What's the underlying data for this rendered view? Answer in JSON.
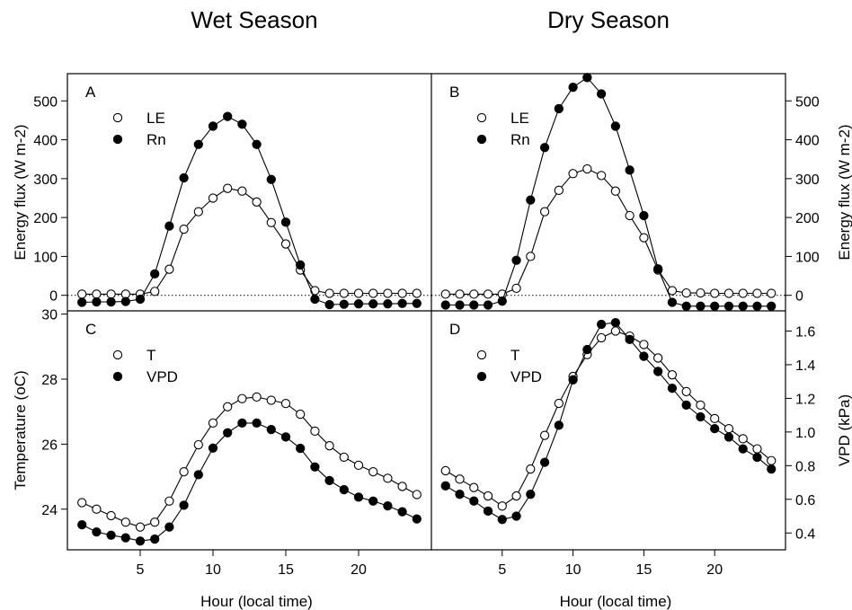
{
  "titles": {
    "wet": "Wet Season",
    "dry": "Dry Season"
  },
  "chart_data": [
    {
      "type": "line",
      "panel": "A",
      "column": "Wet Season",
      "xlabel": "",
      "ylabel": "Energy flux (W m-2)",
      "ylabel_side": "left",
      "xlim": [
        0,
        25
      ],
      "ylim": [
        -40,
        570
      ],
      "yticks": [
        0,
        100,
        200,
        300,
        400,
        500
      ],
      "zero_line": true,
      "legend": "top-left",
      "x": [
        1,
        2,
        3,
        4,
        5,
        6,
        7,
        8,
        9,
        10,
        11,
        12,
        13,
        14,
        15,
        16,
        17,
        18,
        19,
        20,
        21,
        22,
        23,
        24
      ],
      "series": [
        {
          "name": "LE",
          "marker": "open-circle",
          "values": [
            3,
            3,
            3,
            3,
            3,
            10,
            67,
            170,
            215,
            250,
            275,
            268,
            240,
            187,
            132,
            65,
            12,
            5,
            5,
            5,
            5,
            5,
            5,
            5
          ]
        },
        {
          "name": "Rn",
          "marker": "filled-circle",
          "values": [
            -18,
            -17,
            -17,
            -16,
            -10,
            55,
            178,
            302,
            388,
            435,
            460,
            440,
            388,
            298,
            188,
            78,
            -10,
            -24,
            -23,
            -22,
            -22,
            -22,
            -21,
            -21
          ]
        }
      ]
    },
    {
      "type": "line",
      "panel": "B",
      "column": "Dry Season",
      "xlabel": "",
      "ylabel": "Energy flux (W m-2)",
      "ylabel_side": "right",
      "xlim": [
        0,
        25
      ],
      "ylim": [
        -40,
        570
      ],
      "yticks": [
        0,
        100,
        200,
        300,
        400,
        500
      ],
      "zero_line": true,
      "legend": "top-left",
      "x": [
        1,
        2,
        3,
        4,
        5,
        6,
        7,
        8,
        9,
        10,
        11,
        12,
        13,
        14,
        15,
        16,
        17,
        18,
        19,
        20,
        21,
        22,
        23,
        24
      ],
      "series": [
        {
          "name": "LE",
          "marker": "open-circle",
          "values": [
            3,
            3,
            3,
            3,
            3,
            18,
            100,
            215,
            270,
            313,
            325,
            308,
            268,
            205,
            148,
            65,
            12,
            6,
            6,
            5,
            5,
            5,
            5,
            5
          ]
        },
        {
          "name": "Rn",
          "marker": "filled-circle",
          "values": [
            -25,
            -25,
            -25,
            -25,
            -15,
            90,
            245,
            380,
            480,
            535,
            560,
            518,
            435,
            322,
            205,
            68,
            -18,
            -28,
            -28,
            -28,
            -28,
            -28,
            -28,
            -28
          ]
        }
      ]
    },
    {
      "type": "line",
      "panel": "C",
      "column": "Wet Season",
      "xlabel": "Hour (local time)",
      "ylabel": "Temperature (oC)",
      "ylabel_side": "left",
      "xlim": [
        0,
        25
      ],
      "xticks": [
        5,
        10,
        15,
        20
      ],
      "ylim": [
        22.75,
        30.1
      ],
      "yticks": [
        24,
        26,
        28,
        30
      ],
      "legend": "top-left",
      "x": [
        1,
        2,
        3,
        4,
        5,
        6,
        7,
        8,
        9,
        10,
        11,
        12,
        13,
        14,
        15,
        16,
        17,
        18,
        19,
        20,
        21,
        22,
        23,
        24
      ],
      "series": [
        {
          "name": "T",
          "axis": "left",
          "marker": "open-circle",
          "values": [
            24.2,
            24.0,
            23.8,
            23.6,
            23.45,
            23.6,
            24.25,
            25.15,
            25.98,
            26.65,
            27.15,
            27.4,
            27.45,
            27.35,
            27.25,
            26.92,
            26.4,
            25.95,
            25.6,
            25.35,
            25.15,
            24.95,
            24.7,
            24.45
          ]
        },
        {
          "name": "VPD",
          "axis": "left",
          "marker": "filled-circle",
          "values": [
            23.52,
            23.3,
            23.2,
            23.12,
            23.02,
            23.08,
            23.45,
            24.12,
            25.06,
            25.88,
            26.35,
            26.65,
            26.65,
            26.45,
            26.22,
            25.87,
            25.3,
            24.88,
            24.6,
            24.37,
            24.25,
            24.1,
            23.92,
            23.7
          ]
        }
      ]
    },
    {
      "type": "line",
      "panel": "D",
      "column": "Dry Season",
      "xlabel": "Hour (local time)",
      "ylabel": "VPD (kPa)",
      "ylabel_side": "right",
      "xlim": [
        0,
        25
      ],
      "xticks": [
        5,
        10,
        15,
        20
      ],
      "ylim": [
        0.3,
        1.72
      ],
      "yticks": [
        0.4,
        0.6,
        0.8,
        1.0,
        1.2,
        1.4,
        1.6
      ],
      "legend": "top-left",
      "x": [
        1,
        2,
        3,
        4,
        5,
        6,
        7,
        8,
        9,
        10,
        11,
        12,
        13,
        14,
        15,
        16,
        17,
        18,
        19,
        20,
        21,
        22,
        23,
        24
      ],
      "series": [
        {
          "name": "T",
          "marker": "open-circle",
          "values": [
            0.77,
            0.72,
            0.67,
            0.62,
            0.56,
            0.62,
            0.78,
            0.98,
            1.17,
            1.33,
            1.46,
            1.56,
            1.6,
            1.57,
            1.52,
            1.44,
            1.34,
            1.24,
            1.16,
            1.08,
            1.02,
            0.96,
            0.9,
            0.83
          ]
        },
        {
          "name": "VPD",
          "marker": "filled-circle",
          "values": [
            0.68,
            0.63,
            0.59,
            0.53,
            0.48,
            0.5,
            0.63,
            0.82,
            1.04,
            1.31,
            1.49,
            1.64,
            1.65,
            1.55,
            1.45,
            1.36,
            1.26,
            1.16,
            1.09,
            1.02,
            0.97,
            0.9,
            0.85,
            0.78
          ]
        }
      ]
    }
  ]
}
